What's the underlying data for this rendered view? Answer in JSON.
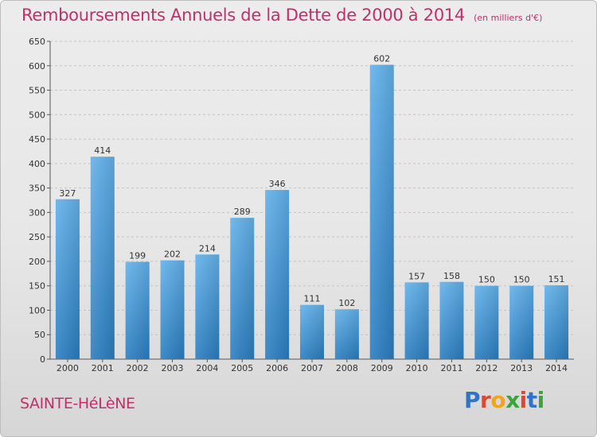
{
  "title": "Remboursements Annuels de la Dette de 2000 à 2014",
  "subtitle": "(en milliers d'€)",
  "commune": "SAINTE-HéLèNE",
  "logo": {
    "letters": [
      "P",
      "r",
      "o",
      "x",
      "i",
      "t",
      "i"
    ],
    "colors": [
      "#2f74c8",
      "#e2462c",
      "#f2a41b",
      "#3aa63a",
      "#e2462c",
      "#2f74c8",
      "#3aa63a"
    ]
  },
  "colors": {
    "accent": "#c0306a",
    "bar_light": "#62b1ea",
    "bar_dark": "#2a7dc0"
  },
  "chart_data": {
    "type": "bar",
    "categories": [
      "2000",
      "2001",
      "2002",
      "2003",
      "2004",
      "2005",
      "2006",
      "2007",
      "2008",
      "2009",
      "2010",
      "2011",
      "2012",
      "2013",
      "2014"
    ],
    "values": [
      327,
      414,
      199,
      202,
      214,
      289,
      346,
      111,
      102,
      602,
      157,
      158,
      150,
      150,
      151
    ],
    "ylim": [
      0,
      650
    ],
    "yticks": [
      0,
      50,
      100,
      150,
      200,
      250,
      300,
      350,
      400,
      450,
      500,
      550,
      600,
      650
    ],
    "grid": true,
    "data_labels": true
  }
}
